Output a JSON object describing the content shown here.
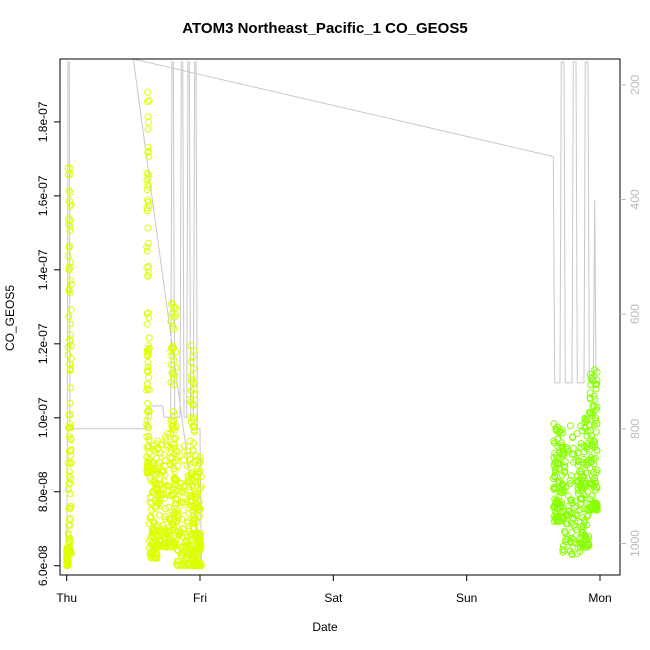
{
  "chart_data": {
    "type": "scatter",
    "title": "ATOM3 Northeast_Pacific_1 CO_GEOS5",
    "xlabel": "Date",
    "ylabel": "CO_GEOS5",
    "x_ticks": [
      "Thu",
      "Fri",
      "Sat",
      "Sun",
      "Mon"
    ],
    "x_range_days": [
      -0.05,
      4.15
    ],
    "y_ticks": [
      "6.0e-08",
      "8.0e-08",
      "1.0e-07",
      "1.2e-07",
      "1.4e-07",
      "1.6e-07",
      "1.8e-07"
    ],
    "y_tick_values": [
      6e-08,
      8e-08,
      1e-07,
      1.2e-07,
      1.4e-07,
      1.6e-07,
      1.8e-07
    ],
    "ylim": [
      5.75e-08,
      1.97e-07
    ],
    "y2_ticks": [
      "200",
      "400",
      "600",
      "800",
      "1000"
    ],
    "y2_tick_values": [
      200,
      400,
      600,
      800,
      1000
    ],
    "y2lim": [
      1055,
      155
    ],
    "grid": false,
    "colors": {
      "early_points": "#ddff00",
      "late_points": "#88ff00",
      "pressure_line": "#c8c8c8",
      "axis": "#000000",
      "right_axis": "#bbbbbb"
    },
    "clusters": [
      {
        "segments": [
          [
            0.0,
            0.01,
            6e-08,
            6.5e-08
          ],
          [
            0.01,
            0.035,
            6.3e-08,
            1.69e-07
          ]
        ]
      },
      {
        "segments": [
          [
            0.6,
            0.62,
            8.5e-08,
            1.92e-07
          ],
          [
            0.62,
            0.68,
            6.2e-08,
            9.3e-08
          ]
        ]
      },
      {
        "segments": [
          [
            0.68,
            0.78,
            6.5e-08,
            9.8e-08
          ],
          [
            0.78,
            0.82,
            6.5e-08,
            1.34e-07
          ]
        ]
      },
      {
        "segments": [
          [
            0.82,
            0.92,
            6e-08,
            9.4e-08
          ],
          [
            0.92,
            0.96,
            6e-08,
            1.2e-07
          ],
          [
            0.96,
            1.01,
            6e-08,
            9e-08
          ]
        ]
      },
      {
        "segments": [
          [
            3.65,
            3.72,
            7.2e-08,
            9.9e-08
          ],
          [
            3.72,
            3.85,
            6.3e-08,
            9.8e-08
          ]
        ]
      },
      {
        "segments": [
          [
            3.85,
            3.92,
            6.5e-08,
            1e-07
          ],
          [
            3.92,
            3.98,
            7.5e-08,
            1.13e-07
          ]
        ]
      }
    ],
    "pressure_series": [
      [
        0.0,
        1030
      ],
      [
        0.005,
        800
      ],
      [
        0.01,
        160
      ],
      [
        0.02,
        160
      ],
      [
        0.025,
        800
      ],
      [
        0.6,
        800
      ],
      [
        0.62,
        760
      ],
      [
        0.72,
        760
      ],
      [
        0.73,
        780
      ],
      [
        0.78,
        780
      ],
      [
        0.79,
        160
      ],
      [
        0.8,
        160
      ],
      [
        0.81,
        780
      ],
      [
        0.85,
        780
      ],
      [
        0.86,
        160
      ],
      [
        0.87,
        160
      ],
      [
        0.88,
        780
      ],
      [
        0.9,
        780
      ],
      [
        0.91,
        160
      ],
      [
        0.92,
        160
      ],
      [
        0.93,
        780
      ],
      [
        0.95,
        780
      ],
      [
        0.96,
        160
      ],
      [
        0.97,
        160
      ],
      [
        0.98,
        800
      ],
      [
        1.0,
        800
      ],
      [
        1.01,
        1030
      ],
      [
        0.5,
        155
      ],
      [
        3.65,
        325
      ],
      [
        3.66,
        720
      ],
      [
        3.7,
        720
      ],
      [
        3.71,
        160
      ],
      [
        3.73,
        160
      ],
      [
        3.74,
        720
      ],
      [
        3.79,
        720
      ],
      [
        3.8,
        160
      ],
      [
        3.82,
        160
      ],
      [
        3.83,
        720
      ],
      [
        3.88,
        720
      ],
      [
        3.89,
        160
      ],
      [
        3.91,
        160
      ],
      [
        3.92,
        720
      ],
      [
        3.95,
        720
      ],
      [
        3.96,
        400
      ],
      [
        3.97,
        720
      ]
    ]
  }
}
